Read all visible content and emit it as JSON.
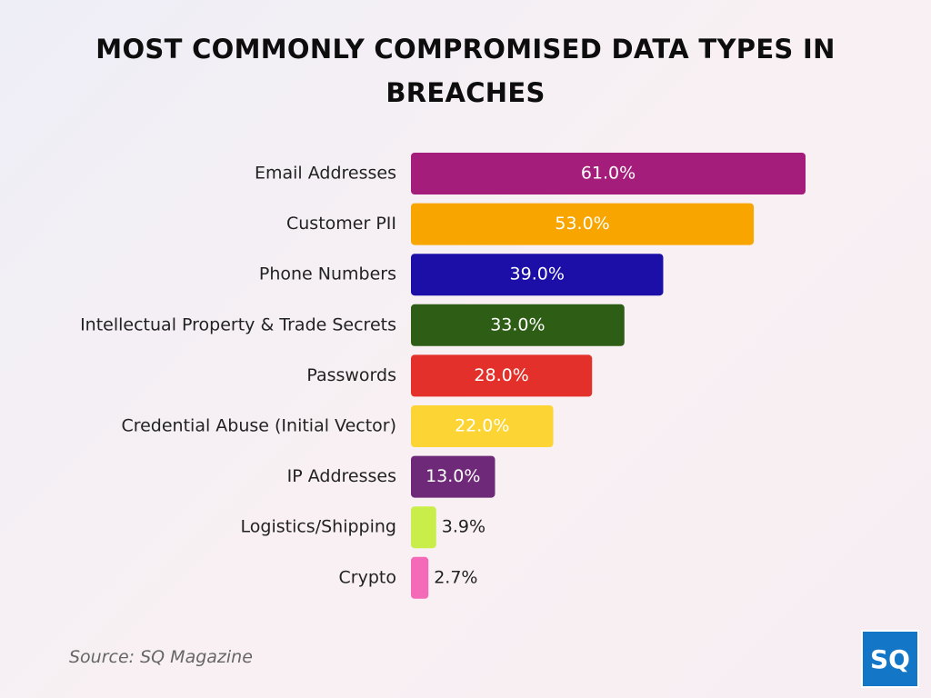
{
  "chart_data": {
    "type": "bar",
    "orientation": "horizontal",
    "title": "MOST COMMONLY COMPROMISED DATA TYPES IN BREACHES",
    "categories": [
      "Email Addresses",
      "Customer PII",
      "Phone Numbers",
      "Intellectual Property & Trade Secrets",
      "Passwords",
      "Credential Abuse (Initial Vector)",
      "IP Addresses",
      "Logistics/Shipping",
      "Crypto"
    ],
    "values": [
      61.0,
      53.0,
      39.0,
      33.0,
      28.0,
      22.0,
      13.0,
      3.9,
      2.7
    ],
    "value_labels": [
      "61.0%",
      "53.0%",
      "39.0%",
      "33.0%",
      "28.0%",
      "22.0%",
      "13.0%",
      "3.9%",
      "2.7%"
    ],
    "colors": [
      "#a51d7a",
      "#f8a500",
      "#1c0fa8",
      "#2e5e15",
      "#e3302a",
      "#fcd535",
      "#6e2a78",
      "#c9ee4a",
      "#f56ab8"
    ],
    "source": "Source: SQ Magazine",
    "logo": "SQ"
  }
}
